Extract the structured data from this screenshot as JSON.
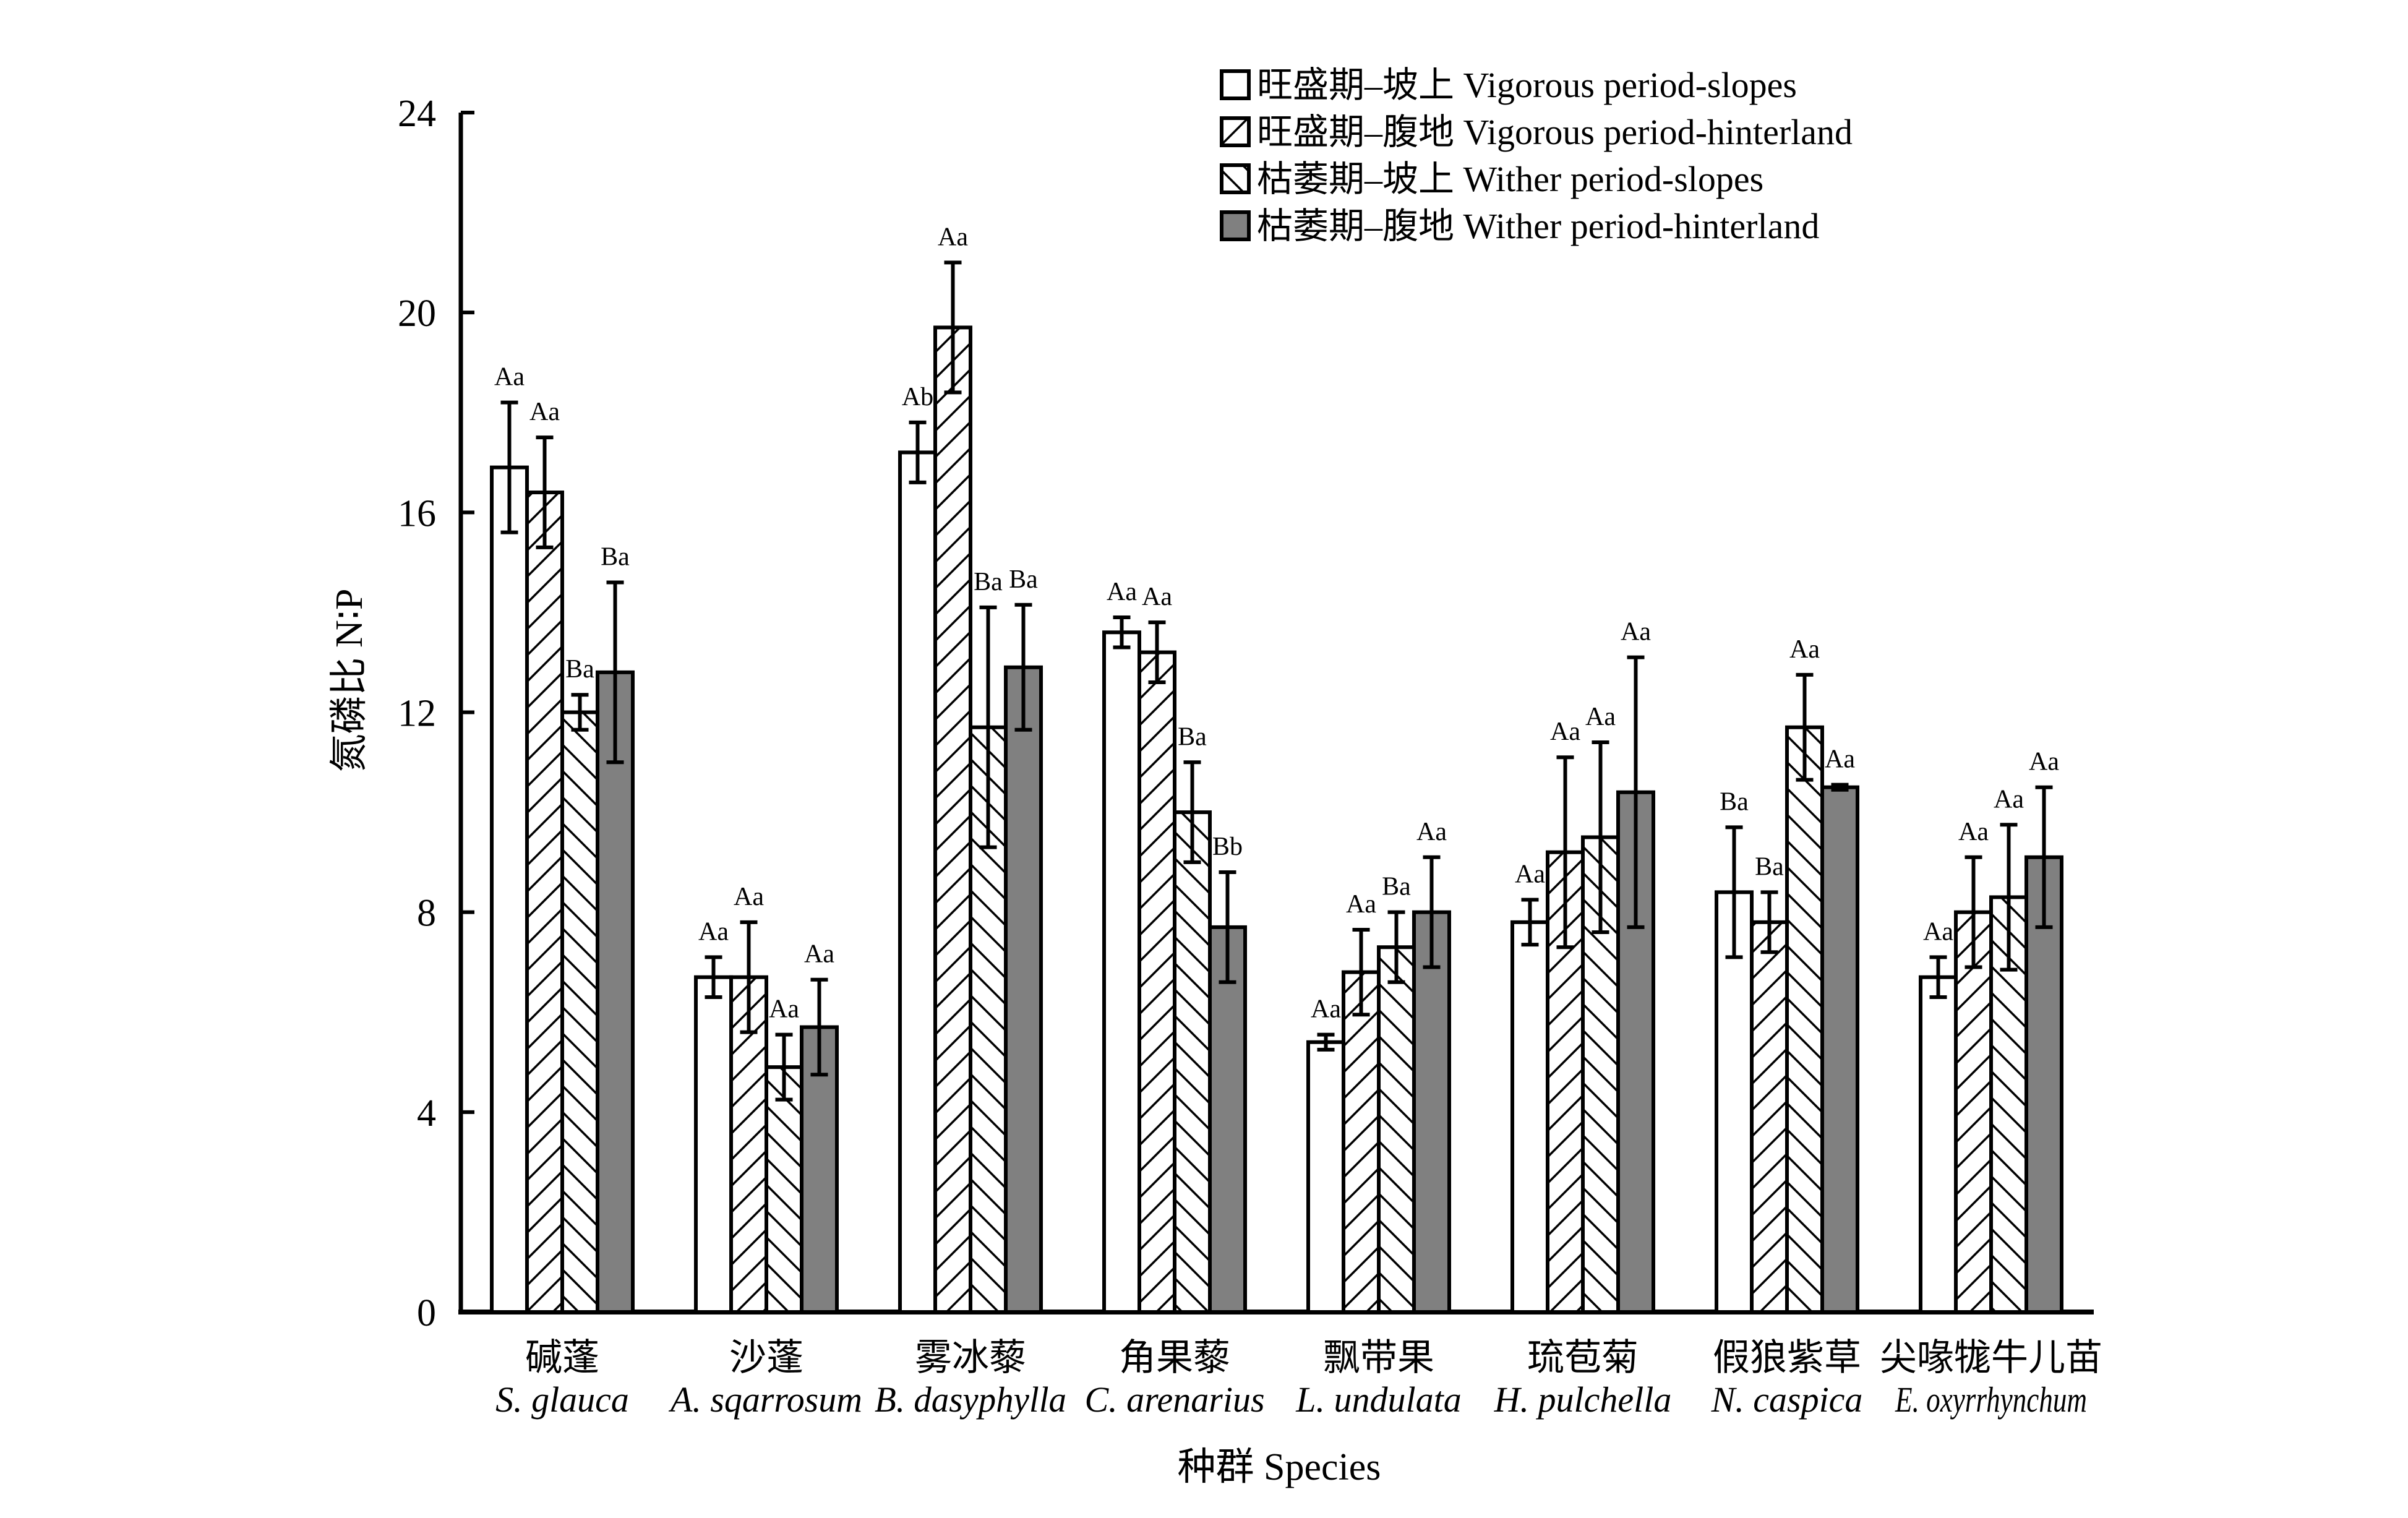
{
  "chart_data": {
    "type": "bar",
    "title": "",
    "xlabel": "种群 Species",
    "ylabel": "氮磷比 N∶P",
    "ylim": [
      0,
      24
    ],
    "yticks": [
      "0",
      "4",
      "8",
      "12",
      "16",
      "20",
      "24"
    ],
    "categories": [
      {
        "cn": "碱蓬",
        "latin": "S. glauca"
      },
      {
        "cn": "沙蓬",
        "latin": "A. sqarrosum"
      },
      {
        "cn": "雾冰藜",
        "latin": "B. dasyphylla"
      },
      {
        "cn": "角果藜",
        "latin": "C. arenarius"
      },
      {
        "cn": "飘带果",
        "latin": "L. undulata"
      },
      {
        "cn": "琉苞菊",
        "latin": "H. pulchella"
      },
      {
        "cn": "假狼紫草",
        "latin": "N. caspica"
      },
      {
        "cn": "尖喙牻牛儿苗",
        "latin": "E. oxyrrhynchum"
      }
    ],
    "series": [
      {
        "name": "旺盛期–坡上 Vigorous period-slopes",
        "pattern": "white",
        "values": [
          16.9,
          6.7,
          17.2,
          13.6,
          5.4,
          7.8,
          8.4,
          6.7
        ],
        "err": [
          1.3,
          0.4,
          0.6,
          0.3,
          0.15,
          0.45,
          1.3,
          0.4
        ],
        "labels": [
          "Aa",
          "Aa",
          "Ab",
          "Aa",
          "Aa",
          "Aa",
          "Ba",
          "Aa"
        ]
      },
      {
        "name": "旺盛期–腹地 Vigorous period-hinterland",
        "pattern": "hatch-right",
        "values": [
          16.4,
          6.7,
          19.7,
          13.2,
          6.8,
          9.2,
          7.8,
          8.0
        ],
        "err": [
          1.1,
          1.1,
          1.3,
          0.6,
          0.85,
          1.9,
          0.6,
          1.1
        ],
        "labels": [
          "Aa",
          "Aa",
          "Aa",
          "Aa",
          "Aa",
          "Aa",
          "Ba",
          "Aa"
        ]
      },
      {
        "name": "枯萎期–坡上 Wither period-slopes",
        "pattern": "hatch-left",
        "values": [
          12.0,
          4.9,
          11.7,
          10.0,
          7.3,
          9.5,
          11.7,
          8.3
        ],
        "err": [
          0.35,
          0.65,
          2.4,
          1.0,
          0.7,
          1.9,
          1.05,
          1.45
        ],
        "labels": [
          "Ba",
          "Aa",
          "Ba",
          "Ba",
          "Ba",
          "Aa",
          "Aa",
          "Aa"
        ]
      },
      {
        "name": "枯萎期–腹地 Wither period-hinterland",
        "pattern": "gray",
        "values": [
          12.8,
          5.7,
          12.9,
          7.7,
          8.0,
          10.4,
          10.5,
          9.1
        ],
        "err": [
          1.8,
          0.95,
          1.25,
          1.1,
          1.1,
          2.7,
          0.05,
          1.4
        ],
        "labels": [
          "Ba",
          "Aa",
          "Ba",
          "Bb",
          "Aa",
          "Aa",
          "Aa",
          "Aa"
        ]
      }
    ],
    "legend_position": "top-right",
    "colors": {
      "gray": "#808080",
      "line": "#000000",
      "white": "#ffffff"
    }
  }
}
